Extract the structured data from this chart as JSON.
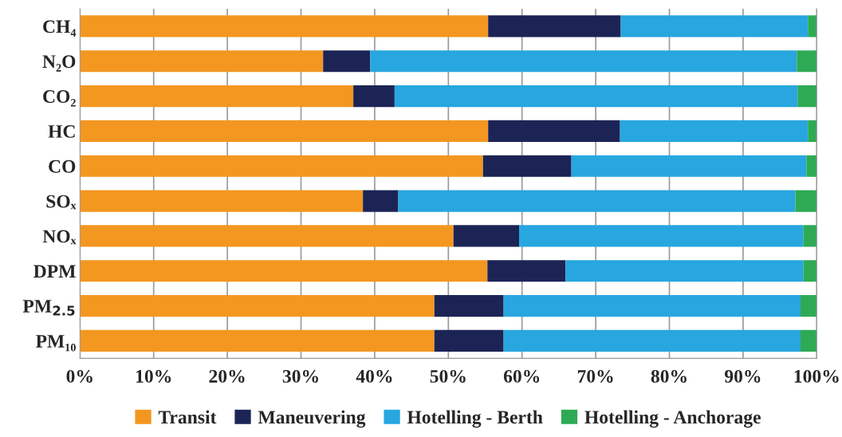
{
  "chart_data": {
    "type": "bar",
    "orientation": "horizontal",
    "stacked": true,
    "categories": [
      "CH₄",
      "N₂O",
      "CO₂",
      "HC",
      "CO",
      "SOₓ",
      "NOₓ",
      "DPM",
      "PM$_{2.5}$",
      "PM₁₀"
    ],
    "series": [
      {
        "name": "Transit",
        "color": "#f39720",
        "values": [
          55.4,
          33.0,
          37.1,
          55.4,
          54.7,
          38.4,
          50.7,
          55.3,
          48.1,
          48.1
        ]
      },
      {
        "name": "Maneuvering",
        "color": "#1c2456",
        "values": [
          18.0,
          6.4,
          5.6,
          17.9,
          12.0,
          4.8,
          8.9,
          10.6,
          9.4,
          9.4
        ]
      },
      {
        "name": "Hotelling - Berth",
        "color": "#27a6df",
        "values": [
          25.4,
          57.9,
          54.7,
          25.5,
          31.9,
          53.9,
          38.6,
          32.3,
          40.3,
          40.3
        ]
      },
      {
        "name": "Hotelling - Anchorage",
        "color": "#2eaa54",
        "values": [
          1.2,
          2.7,
          2.6,
          1.2,
          1.4,
          2.9,
          1.8,
          1.8,
          2.2,
          2.2
        ]
      }
    ],
    "xlim": [
      0,
      100
    ],
    "xticks": [
      {
        "value": 0,
        "label": "0%"
      },
      {
        "value": 10,
        "label": "10%"
      },
      {
        "value": 20,
        "label": "20%"
      },
      {
        "value": 30,
        "label": "30%"
      },
      {
        "value": 40,
        "label": "40%"
      },
      {
        "value": 50,
        "label": "50%"
      },
      {
        "value": 60,
        "label": "60%"
      },
      {
        "value": 70,
        "label": "70%"
      },
      {
        "value": 80,
        "label": "80%"
      },
      {
        "value": 90,
        "label": "90%"
      },
      {
        "value": 100,
        "label": "100%"
      }
    ],
    "grid": "x",
    "legend": "bottom"
  }
}
